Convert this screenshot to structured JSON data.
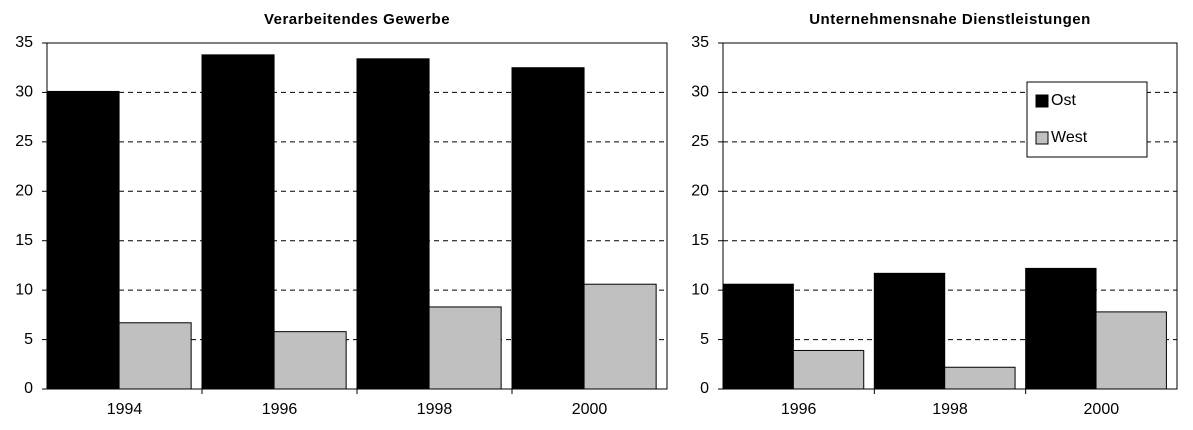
{
  "chart_data": [
    {
      "type": "bar",
      "title": "Verarbeitendes Gewerbe",
      "categories": [
        "1994",
        "1996",
        "1998",
        "2000"
      ],
      "series": [
        {
          "color": "#000000",
          "values": [
            30.1,
            33.8,
            33.4,
            32.5
          ]
        },
        {
          "color": "#c0c0c0",
          "values": [
            6.7,
            5.8,
            8.3,
            10.6
          ]
        }
      ],
      "ylim": [
        0,
        35
      ],
      "yticks": [
        0,
        5,
        10,
        15,
        20,
        25,
        30,
        35
      ],
      "grid": true
    },
    {
      "type": "bar",
      "title": "Unternehmensnahe Dienstleistungen",
      "categories": [
        "1996",
        "1998",
        "2000"
      ],
      "series": [
        {
          "name": "Ost",
          "color": "#000000",
          "values": [
            10.6,
            11.7,
            12.2
          ]
        },
        {
          "name": "West",
          "color": "#c0c0c0",
          "values": [
            3.9,
            2.2,
            7.8
          ]
        }
      ],
      "ylim": [
        0,
        35
      ],
      "yticks": [
        0,
        5,
        10,
        15,
        20,
        25,
        30,
        35
      ],
      "grid": true,
      "legend": "upper right"
    }
  ]
}
